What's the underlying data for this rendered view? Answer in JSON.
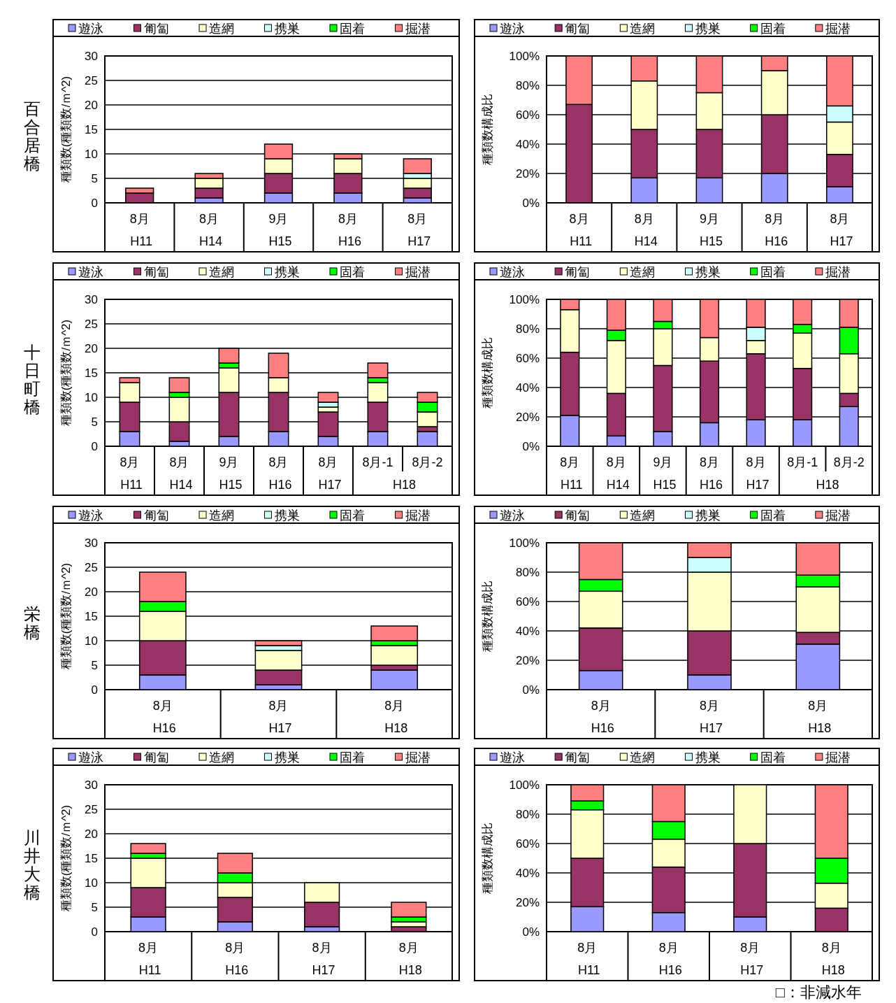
{
  "chart_data": [
    {
      "type": "bar",
      "stacked": true,
      "title": "百合居橋",
      "ylabel": "種類数(種類数/ｍ^2)",
      "categories": [
        "8月\nH11",
        "8月\nH14",
        "9月\nH15",
        "8月\nH16",
        "8月\nH17"
      ],
      "ylim": [
        0,
        30
      ],
      "yticks": [
        0,
        5,
        10,
        15,
        20,
        25,
        30
      ],
      "grid": "y",
      "legend": "top",
      "series": [
        {
          "name": "遊泳",
          "color": "#9999ff",
          "values": [
            0,
            1,
            2,
            2,
            1
          ]
        },
        {
          "name": "匍匐",
          "color": "#993366",
          "values": [
            2,
            2,
            4,
            4,
            2
          ]
        },
        {
          "name": "造網",
          "color": "#ffffcc",
          "values": [
            0,
            2,
            3,
            3,
            2
          ]
        },
        {
          "name": "携巣",
          "color": "#ccffff",
          "values": [
            0,
            0,
            0,
            0,
            1
          ]
        },
        {
          "name": "固着",
          "color": "#00ff00",
          "values": [
            0,
            0,
            0,
            0,
            0
          ]
        },
        {
          "name": "掘潜",
          "color": "#ff8080",
          "values": [
            1,
            1,
            3,
            1,
            3
          ]
        }
      ]
    },
    {
      "type": "bar",
      "stacked": true,
      "ylabel": "種類数構成比",
      "categories": [
        "8月\nH11",
        "8月\nH14",
        "9月\nH15",
        "8月\nH16",
        "8月\nH17"
      ],
      "ylim": [
        0,
        100
      ],
      "yticks": [
        {
          "value": 0,
          "label": "0%"
        },
        {
          "value": 20,
          "label": "20%"
        },
        {
          "value": 40,
          "label": "40%"
        },
        {
          "value": 60,
          "label": "60%"
        },
        {
          "value": 80,
          "label": "80%"
        },
        {
          "value": 100,
          "label": "100%"
        }
      ],
      "grid": "y",
      "legend": "top",
      "series": [
        {
          "name": "遊泳",
          "color": "#9999ff",
          "values": [
            0,
            17,
            17,
            20,
            11
          ]
        },
        {
          "name": "匍匐",
          "color": "#993366",
          "values": [
            67,
            33,
            33,
            40,
            22
          ]
        },
        {
          "name": "造網",
          "color": "#ffffcc",
          "values": [
            0,
            33,
            25,
            30,
            22
          ]
        },
        {
          "name": "携巣",
          "color": "#ccffff",
          "values": [
            0,
            0,
            0,
            0,
            11
          ]
        },
        {
          "name": "固着",
          "color": "#00ff00",
          "values": [
            0,
            0,
            0,
            0,
            0
          ]
        },
        {
          "name": "掘潜",
          "color": "#ff8080",
          "values": [
            33,
            17,
            25,
            10,
            34
          ]
        }
      ]
    },
    {
      "type": "bar",
      "stacked": true,
      "title": "十日町橋",
      "ylabel": "種類数(種類数/ｍ^2)",
      "categories": [
        "8月\nH11",
        "8月\nH14",
        "9月\nH15",
        "8月\nH16",
        "8月\nH17",
        "8月-1\nH18",
        "8月-2"
      ],
      "ylim": [
        0,
        30
      ],
      "yticks": [
        0,
        5,
        10,
        15,
        20,
        25,
        30
      ],
      "grid": "y",
      "legend": "top",
      "series": [
        {
          "name": "遊泳",
          "color": "#9999ff",
          "values": [
            3,
            1,
            2,
            3,
            2,
            3,
            3
          ]
        },
        {
          "name": "匍匐",
          "color": "#993366",
          "values": [
            6,
            4,
            9,
            8,
            5,
            6,
            1
          ]
        },
        {
          "name": "造網",
          "color": "#ffffcc",
          "values": [
            4,
            5,
            5,
            3,
            1,
            4,
            3
          ]
        },
        {
          "name": "携巣",
          "color": "#ccffff",
          "values": [
            0,
            0,
            0,
            0,
            1,
            0,
            0
          ]
        },
        {
          "name": "固着",
          "color": "#00ff00",
          "values": [
            0,
            1,
            1,
            0,
            0,
            1,
            2
          ]
        },
        {
          "name": "掘潜",
          "color": "#ff8080",
          "values": [
            1,
            3,
            3,
            5,
            2,
            3,
            2
          ]
        }
      ]
    },
    {
      "type": "bar",
      "stacked": true,
      "ylabel": "種類数構成比",
      "categories": [
        "8月\nH11",
        "8月\nH14",
        "9月\nH15",
        "8月\nH16",
        "8月\nH17",
        "8月-1\nH18",
        "8月-2"
      ],
      "ylim": [
        0,
        100
      ],
      "yticks": [
        {
          "value": 0,
          "label": "0%"
        },
        {
          "value": 20,
          "label": "20%"
        },
        {
          "value": 40,
          "label": "40%"
        },
        {
          "value": 60,
          "label": "60%"
        },
        {
          "value": 80,
          "label": "80%"
        },
        {
          "value": 100,
          "label": "100%"
        }
      ],
      "grid": "y",
      "legend": "top",
      "series": [
        {
          "name": "遊泳",
          "color": "#9999ff",
          "values": [
            21,
            7,
            10,
            16,
            18,
            18,
            27
          ]
        },
        {
          "name": "匍匐",
          "color": "#993366",
          "values": [
            43,
            29,
            45,
            42,
            45,
            35,
            9
          ]
        },
        {
          "name": "造網",
          "color": "#ffffcc",
          "values": [
            29,
            36,
            25,
            16,
            9,
            24,
            27
          ]
        },
        {
          "name": "携巣",
          "color": "#ccffff",
          "values": [
            0,
            0,
            0,
            0,
            9,
            0,
            0
          ]
        },
        {
          "name": "固着",
          "color": "#00ff00",
          "values": [
            0,
            7,
            5,
            0,
            0,
            6,
            18
          ]
        },
        {
          "name": "掘潜",
          "color": "#ff8080",
          "values": [
            7,
            21,
            15,
            26,
            19,
            17,
            19
          ]
        }
      ]
    },
    {
      "type": "bar",
      "stacked": true,
      "title": "栄橋",
      "ylabel": "種類数(種類数/ｍ^2)",
      "categories": [
        "8月\nH16",
        "8月\nH17",
        "8月\nH18"
      ],
      "ylim": [
        0,
        30
      ],
      "yticks": [
        0,
        5,
        10,
        15,
        20,
        25,
        30
      ],
      "grid": "y",
      "legend": "top",
      "series": [
        {
          "name": "遊泳",
          "color": "#9999ff",
          "values": [
            3,
            1,
            4
          ]
        },
        {
          "name": "匍匐",
          "color": "#993366",
          "values": [
            7,
            3,
            1
          ]
        },
        {
          "name": "造網",
          "color": "#ffffcc",
          "values": [
            6,
            4,
            4
          ]
        },
        {
          "name": "携巣",
          "color": "#ccffff",
          "values": [
            0,
            1,
            0
          ]
        },
        {
          "name": "固着",
          "color": "#00ff00",
          "values": [
            2,
            0,
            1
          ]
        },
        {
          "name": "掘潜",
          "color": "#ff8080",
          "values": [
            6,
            1,
            3
          ]
        }
      ]
    },
    {
      "type": "bar",
      "stacked": true,
      "ylabel": "種類数構成比",
      "categories": [
        "8月\nH16",
        "8月\nH17",
        "8月\nH18"
      ],
      "ylim": [
        0,
        100
      ],
      "yticks": [
        {
          "value": 0,
          "label": "0%"
        },
        {
          "value": 20,
          "label": "20%"
        },
        {
          "value": 40,
          "label": "40%"
        },
        {
          "value": 60,
          "label": "60%"
        },
        {
          "value": 80,
          "label": "80%"
        },
        {
          "value": 100,
          "label": "100%"
        }
      ],
      "grid": "y",
      "legend": "top",
      "series": [
        {
          "name": "遊泳",
          "color": "#9999ff",
          "values": [
            13,
            10,
            31
          ]
        },
        {
          "name": "匍匐",
          "color": "#993366",
          "values": [
            29,
            30,
            8
          ]
        },
        {
          "name": "造網",
          "color": "#ffffcc",
          "values": [
            25,
            40,
            31
          ]
        },
        {
          "name": "携巣",
          "color": "#ccffff",
          "values": [
            0,
            10,
            0
          ]
        },
        {
          "name": "固着",
          "color": "#00ff00",
          "values": [
            8,
            0,
            8
          ]
        },
        {
          "name": "掘潜",
          "color": "#ff8080",
          "values": [
            25,
            10,
            22
          ]
        }
      ]
    },
    {
      "type": "bar",
      "stacked": true,
      "title": "川井大橋",
      "ylabel": "種類数(種類数/ｍ^2)",
      "categories": [
        "8月\nH11",
        "8月\nH16",
        "8月\nH17",
        "8月\nH18"
      ],
      "ylim": [
        0,
        30
      ],
      "yticks": [
        0,
        5,
        10,
        15,
        20,
        25,
        30
      ],
      "grid": "y",
      "legend": "top",
      "series": [
        {
          "name": "遊泳",
          "color": "#9999ff",
          "values": [
            3,
            2,
            1,
            0
          ]
        },
        {
          "name": "匍匐",
          "color": "#993366",
          "values": [
            6,
            5,
            5,
            1
          ]
        },
        {
          "name": "造網",
          "color": "#ffffcc",
          "values": [
            6,
            3,
            4,
            1
          ]
        },
        {
          "name": "携巣",
          "color": "#ccffff",
          "values": [
            0,
            0,
            0,
            0
          ]
        },
        {
          "name": "固着",
          "color": "#00ff00",
          "values": [
            1,
            2,
            0,
            1
          ]
        },
        {
          "name": "掘潜",
          "color": "#ff8080",
          "values": [
            2,
            4,
            0,
            3
          ]
        }
      ]
    },
    {
      "type": "bar",
      "stacked": true,
      "ylabel": "種類数構成比",
      "categories": [
        "8月\nH11",
        "8月\nH16",
        "8月\nH17",
        "8月\nH18"
      ],
      "ylim": [
        0,
        100
      ],
      "yticks": [
        {
          "value": 0,
          "label": "0%"
        },
        {
          "value": 20,
          "label": "20%"
        },
        {
          "value": 40,
          "label": "40%"
        },
        {
          "value": 60,
          "label": "60%"
        },
        {
          "value": 80,
          "label": "80%"
        },
        {
          "value": 100,
          "label": "100%"
        }
      ],
      "grid": "y",
      "legend": "top",
      "annotations": [
        "□：非減水年"
      ],
      "series": [
        {
          "name": "遊泳",
          "color": "#9999ff",
          "values": [
            17,
            13,
            10,
            0
          ]
        },
        {
          "name": "匍匐",
          "color": "#993366",
          "values": [
            33,
            31,
            50,
            16
          ]
        },
        {
          "name": "造網",
          "color": "#ffffcc",
          "values": [
            33,
            19,
            40,
            17
          ]
        },
        {
          "name": "携巣",
          "color": "#ccffff",
          "values": [
            0,
            0,
            0,
            0
          ]
        },
        {
          "name": "固着",
          "color": "#00ff00",
          "values": [
            6,
            12,
            0,
            17
          ]
        },
        {
          "name": "掘潜",
          "color": "#ff8080",
          "values": [
            11,
            25,
            0,
            50
          ]
        }
      ]
    }
  ]
}
